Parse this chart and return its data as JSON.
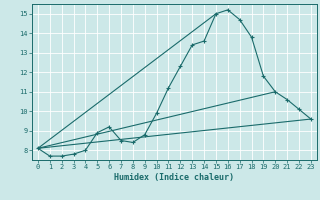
{
  "xlabel": "Humidex (Indice chaleur)",
  "bg_color": "#cce8e8",
  "grid_color": "#ffffff",
  "line_color": "#1a6b6b",
  "xlim": [
    -0.5,
    23.5
  ],
  "ylim": [
    7.5,
    15.5
  ],
  "xticks": [
    0,
    1,
    2,
    3,
    4,
    5,
    6,
    7,
    8,
    9,
    10,
    11,
    12,
    13,
    14,
    15,
    16,
    17,
    18,
    19,
    20,
    21,
    22,
    23
  ],
  "yticks": [
    8,
    9,
    10,
    11,
    12,
    13,
    14,
    15
  ],
  "curve1_x": [
    0,
    1,
    2,
    3,
    4,
    5,
    6,
    7,
    8,
    9,
    10,
    11,
    12,
    13,
    14,
    15,
    16,
    17,
    18,
    19,
    20,
    21,
    22,
    23
  ],
  "curve1_y": [
    8.1,
    7.7,
    7.7,
    7.8,
    8.0,
    8.9,
    9.2,
    8.5,
    8.4,
    8.8,
    9.9,
    11.2,
    12.3,
    13.4,
    13.6,
    15.0,
    15.2,
    14.7,
    13.8,
    11.8,
    11.0,
    10.6,
    10.1,
    9.6
  ],
  "line2_x": [
    0,
    23
  ],
  "line2_y": [
    8.1,
    9.6
  ],
  "line3_x": [
    0,
    20
  ],
  "line3_y": [
    8.1,
    11.0
  ],
  "line4_x": [
    0,
    15
  ],
  "line4_y": [
    8.1,
    15.0
  ],
  "tick_fontsize": 5.0,
  "xlabel_fontsize": 6.0
}
